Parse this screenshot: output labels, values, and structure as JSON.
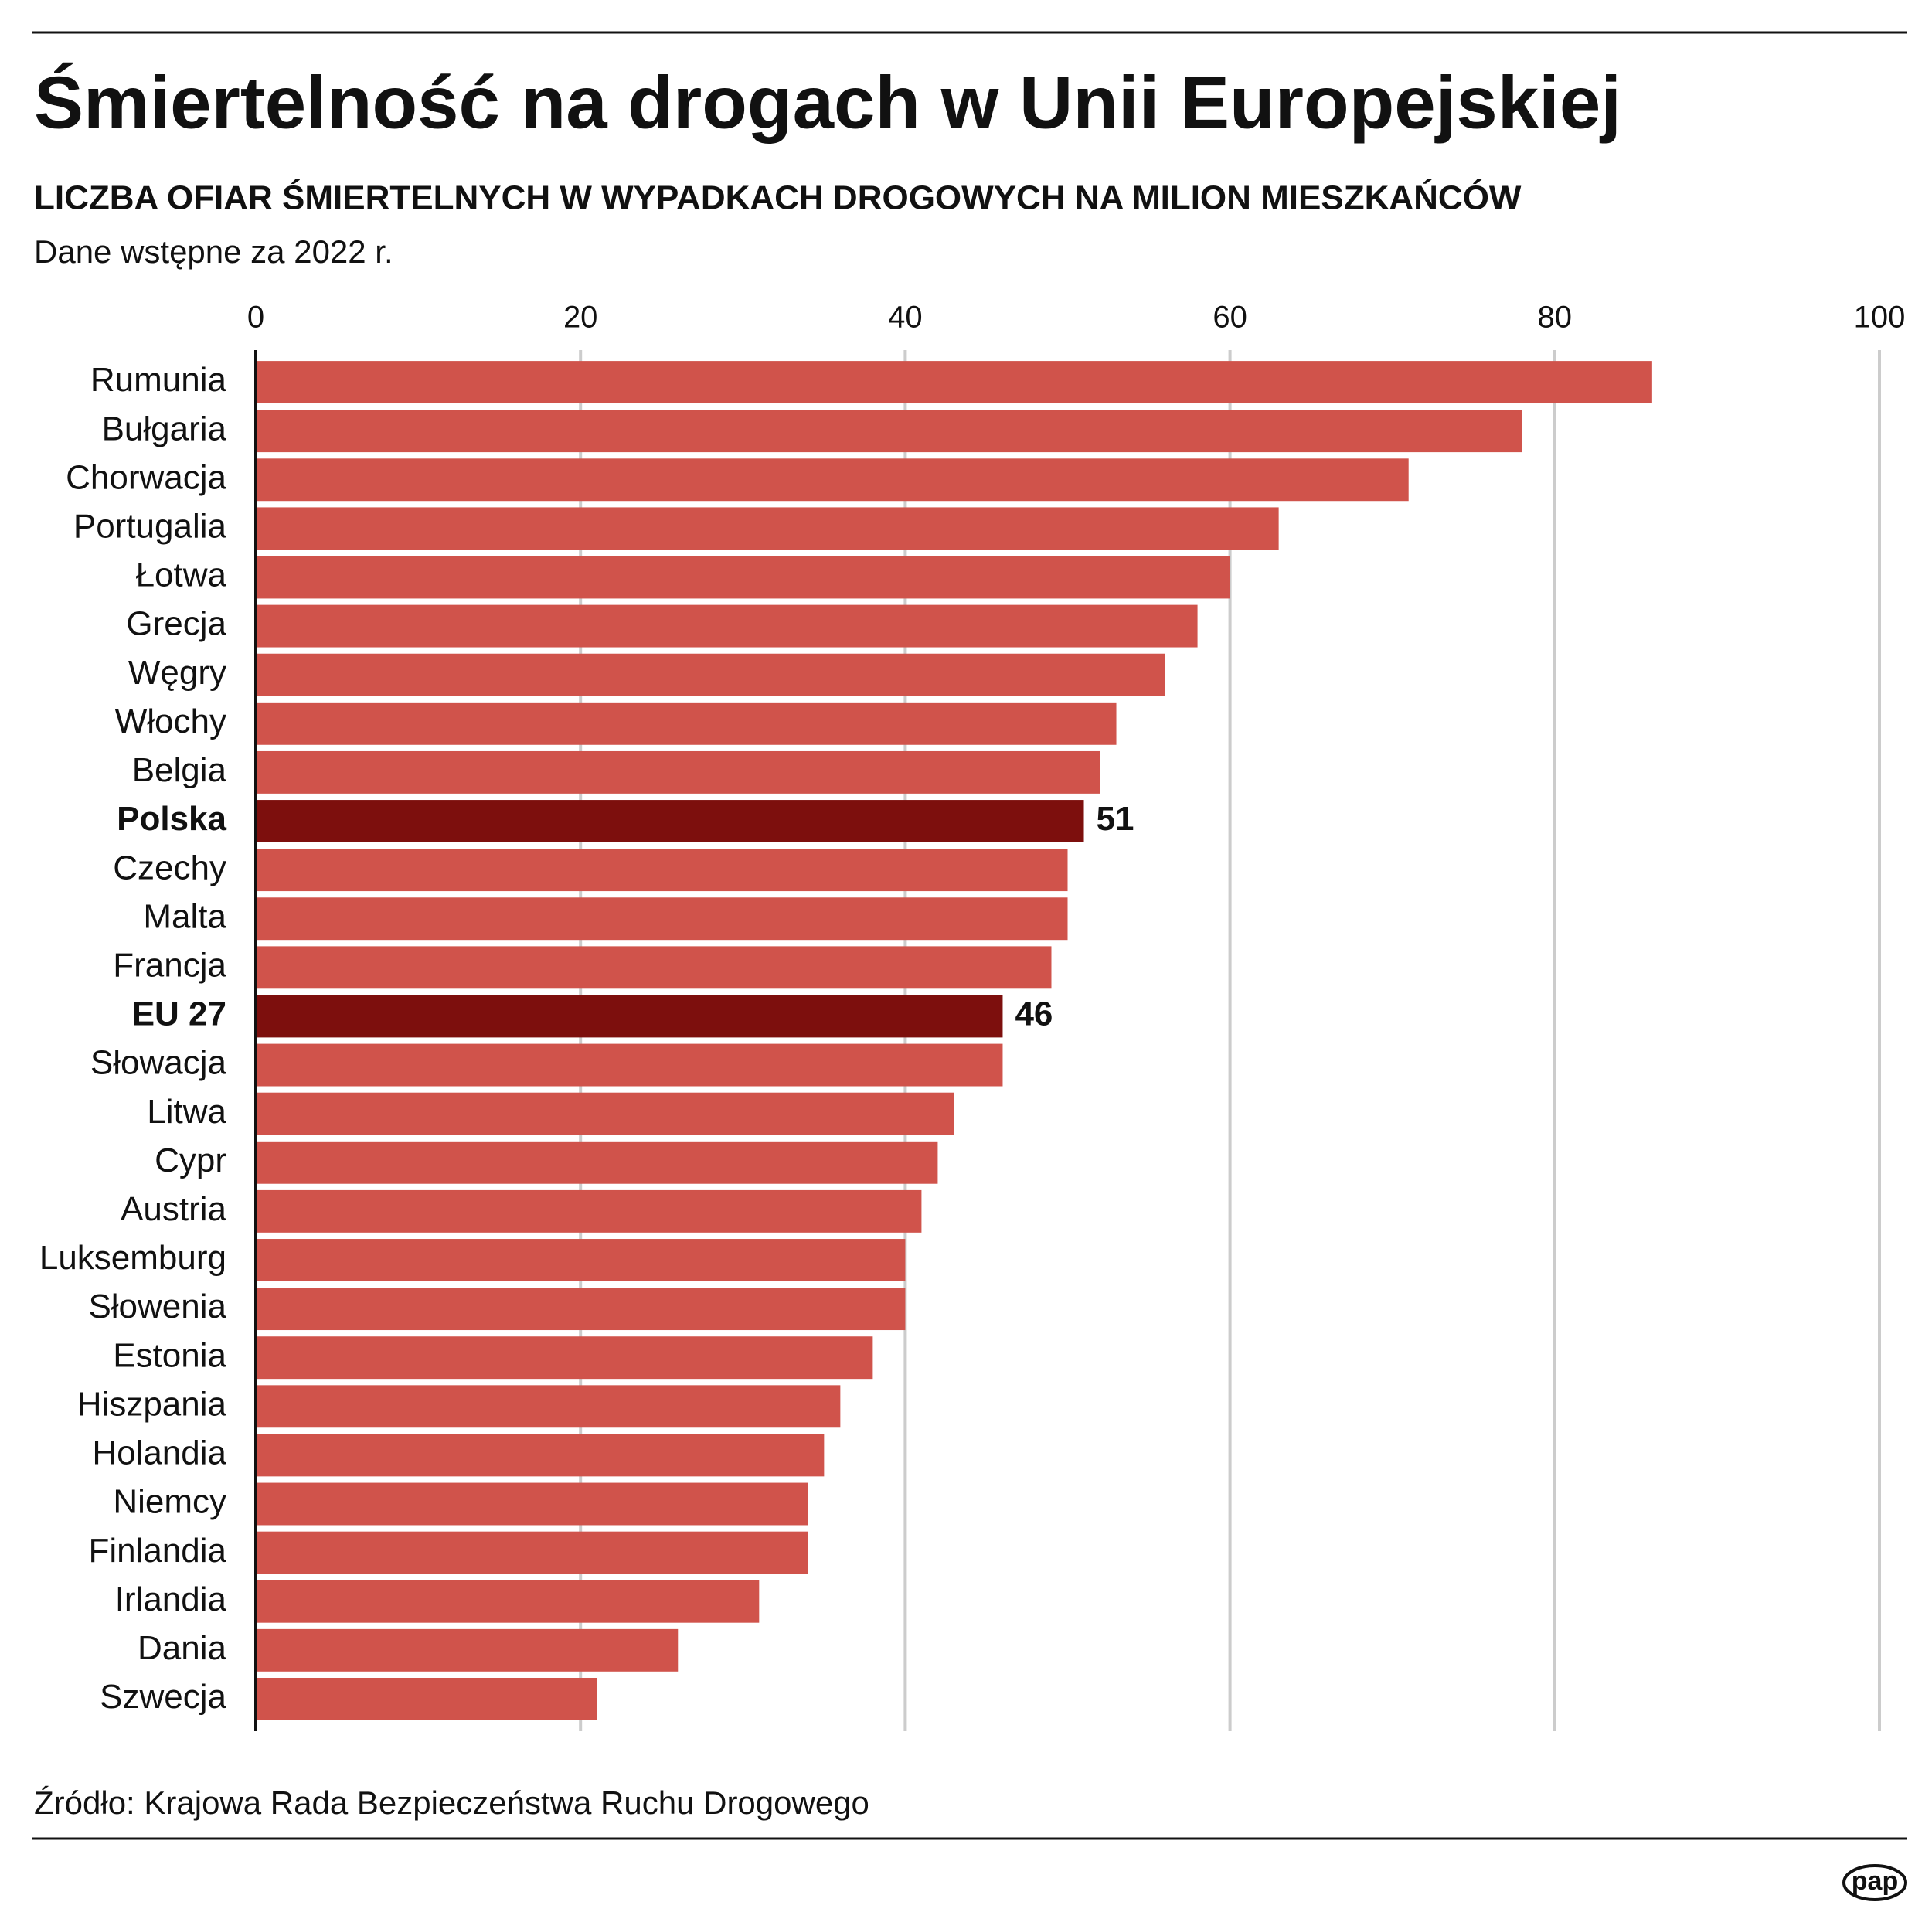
{
  "chart_data": {
    "type": "bar",
    "orientation": "horizontal",
    "title": "Śmiertelność na drogach w Unii Europejskiej",
    "subtitle": "LICZBA OFIAR ŚMIERTELNYCH W WYPADKACH DROGOWYCH NA MILION MIESZKAŃCÓW",
    "note": "Dane wstępne za 2022 r.",
    "source": "Źródło: Krajowa Rada Bezpieczeństwa Ruchu Drogowego",
    "logo": "pap",
    "categories": [
      "Rumunia",
      "Bułgaria",
      "Chorwacja",
      "Portugalia",
      "Łotwa",
      "Grecja",
      "Węgry",
      "Włochy",
      "Belgia",
      "Polska",
      "Czechy",
      "Malta",
      "Francja",
      "EU 27",
      "Słowacja",
      "Litwa",
      "Cypr",
      "Austria",
      "Luksemburg",
      "Słowenia",
      "Estonia",
      "Hiszpania",
      "Holandia",
      "Niemcy",
      "Finlandia",
      "Irlandia",
      "Dania",
      "Szwecja"
    ],
    "values": [
      86,
      78,
      71,
      63,
      60,
      58,
      56,
      53,
      52,
      51,
      50,
      50,
      49,
      46,
      46,
      43,
      42,
      41,
      40,
      40,
      38,
      36,
      35,
      34,
      34,
      31,
      26,
      21
    ],
    "color": "#d0534b",
    "colors": [
      "#d0534b",
      "#d0534b",
      "#d0534b",
      "#d0534b",
      "#d0534b",
      "#d0534b",
      "#d0534b",
      "#d0534b",
      "#d0534b",
      "#7d0f0d",
      "#d0534b",
      "#d0534b",
      "#d0534b",
      "#7d0f0d",
      "#d0534b",
      "#d0534b",
      "#d0534b",
      "#d0534b",
      "#d0534b",
      "#d0534b",
      "#d0534b",
      "#d0534b",
      "#d0534b",
      "#d0534b",
      "#d0534b",
      "#d0534b",
      "#d0534b",
      "#d0534b"
    ],
    "xlim": [
      0,
      100
    ],
    "xticks": [
      0,
      20,
      40,
      60,
      80,
      100
    ],
    "grid": true
  }
}
